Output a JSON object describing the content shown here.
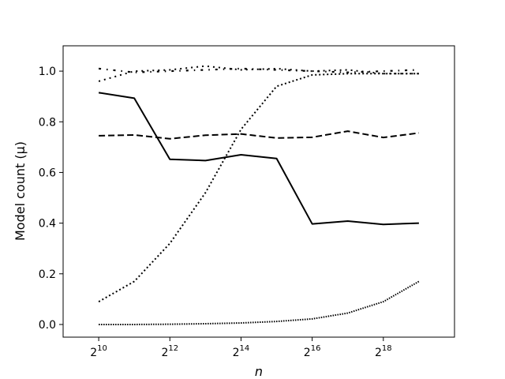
{
  "chart_data": {
    "type": "line",
    "xlabel": "n",
    "ylabel": "Model count (μ)",
    "x_scale": "log2",
    "x": [
      1024,
      2048,
      4096,
      8192,
      16384,
      32768,
      65536,
      131072,
      262144,
      524288
    ],
    "xlim": [
      512,
      1048576
    ],
    "ylim": [
      -0.05,
      1.1
    ],
    "x_ticks": [
      {
        "value": 1024,
        "base": "2",
        "exp": "10"
      },
      {
        "value": 4096,
        "base": "2",
        "exp": "12"
      },
      {
        "value": 16384,
        "base": "2",
        "exp": "14"
      },
      {
        "value": 65536,
        "base": "2",
        "exp": "16"
      },
      {
        "value": 262144,
        "base": "2",
        "exp": "18"
      }
    ],
    "y_ticks": [
      {
        "value": 0.0,
        "label": "0.0"
      },
      {
        "value": 0.2,
        "label": "0.2"
      },
      {
        "value": 0.4,
        "label": "0.4"
      },
      {
        "value": 0.6,
        "label": "0.6"
      },
      {
        "value": 0.8,
        "label": "0.8"
      },
      {
        "value": 1.0,
        "label": "1.0"
      }
    ],
    "grid": false,
    "color": "#000000",
    "series": [
      {
        "style": "solid",
        "values": [
          0.915,
          0.893,
          0.652,
          0.647,
          0.67,
          0.655,
          0.397,
          0.408,
          0.395,
          0.4
        ]
      },
      {
        "style": "dashed",
        "values": [
          0.745,
          0.748,
          0.733,
          0.747,
          0.752,
          0.736,
          0.739,
          0.763,
          0.738,
          0.756
        ]
      },
      {
        "style": "dotted",
        "values": [
          0.09,
          0.17,
          0.32,
          0.52,
          0.77,
          0.94,
          0.985,
          0.99,
          0.99,
          0.99
        ]
      },
      {
        "style": "dotted-fine",
        "values": [
          0.0,
          0.0,
          0.001,
          0.003,
          0.006,
          0.012,
          0.022,
          0.045,
          0.09,
          0.17
        ]
      },
      {
        "style": "dashdot",
        "values": [
          1.01,
          0.995,
          1.0,
          1.005,
          1.01,
          1.005,
          1.0,
          0.995,
          1.0,
          1.005
        ]
      },
      {
        "style": "dotted-coarse",
        "values": [
          0.96,
          1.0,
          1.005,
          1.02,
          1.005,
          1.01,
          1.0,
          1.005,
          0.99,
          0.99
        ]
      }
    ]
  }
}
